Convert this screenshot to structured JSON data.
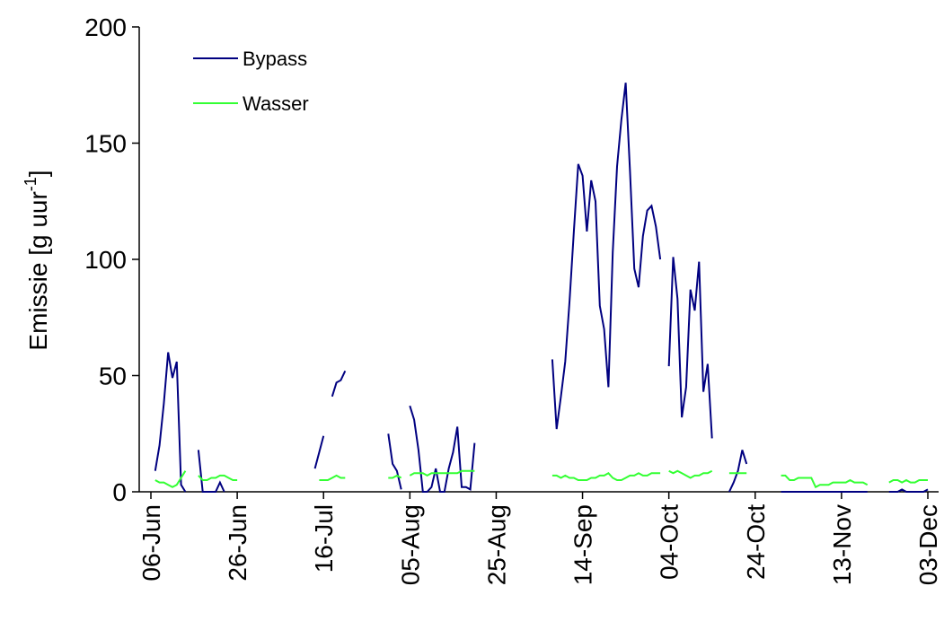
{
  "chart_data": {
    "type": "line",
    "ylabel": [
      "Emissie [g uur",
      "-1",
      "]"
    ],
    "categories": [
      "06-Jun",
      null,
      null,
      null,
      null,
      null,
      null,
      null,
      null,
      null,
      null,
      null,
      null,
      null,
      null,
      null,
      null,
      null,
      null,
      null,
      "26-Jun",
      null,
      null,
      null,
      null,
      null,
      null,
      null,
      null,
      null,
      null,
      null,
      null,
      null,
      null,
      null,
      null,
      null,
      null,
      null,
      "16-Jul",
      null,
      null,
      null,
      null,
      null,
      null,
      null,
      null,
      null,
      null,
      null,
      null,
      null,
      null,
      null,
      null,
      null,
      null,
      null,
      "05-Aug",
      null,
      null,
      null,
      null,
      null,
      null,
      null,
      null,
      null,
      null,
      null,
      null,
      null,
      null,
      null,
      null,
      null,
      null,
      null,
      "25-Aug",
      null,
      null,
      null,
      null,
      null,
      null,
      null,
      null,
      null,
      null,
      null,
      null,
      null,
      null,
      null,
      null,
      null,
      null,
      null,
      "14-Sep",
      null,
      null,
      null,
      null,
      null,
      null,
      null,
      null,
      null,
      null,
      null,
      null,
      null,
      null,
      null,
      null,
      null,
      null,
      null,
      "04-Oct",
      null,
      null,
      null,
      null,
      null,
      null,
      null,
      null,
      null,
      null,
      null,
      null,
      null,
      null,
      null,
      null,
      null,
      null,
      null,
      "24-Oct",
      null,
      null,
      null,
      null,
      null,
      null,
      null,
      null,
      null,
      null,
      null,
      null,
      null,
      null,
      null,
      null,
      null,
      null,
      null,
      "13-Nov",
      null,
      null,
      null,
      null,
      null,
      null,
      null,
      null,
      null,
      null,
      null,
      null,
      null,
      null,
      null,
      null,
      null,
      null,
      null,
      "03-Dec"
    ],
    "series": [
      {
        "name": "Bypass",
        "color": "#000080",
        "values": [
          null,
          9,
          20,
          38,
          60,
          49,
          56,
          3,
          0,
          null,
          null,
          18,
          0,
          0,
          0,
          0,
          4,
          0,
          null,
          null,
          null,
          null,
          null,
          null,
          null,
          null,
          null,
          null,
          null,
          null,
          null,
          null,
          null,
          null,
          null,
          null,
          null,
          null,
          10,
          17,
          24,
          null,
          41,
          47,
          48,
          52,
          null,
          null,
          null,
          null,
          null,
          null,
          null,
          null,
          null,
          25,
          12,
          9,
          1,
          null,
          37,
          31,
          18,
          0,
          0,
          2,
          10,
          0,
          0,
          10,
          17,
          28,
          2,
          2,
          1,
          21,
          null,
          null,
          null,
          null,
          null,
          null,
          null,
          null,
          null,
          null,
          null,
          null,
          null,
          null,
          null,
          null,
          null,
          57,
          27,
          41,
          56,
          82,
          112,
          141,
          136,
          112,
          134,
          125,
          80,
          70,
          45,
          103,
          140,
          160,
          176,
          138,
          96,
          88,
          110,
          121,
          123,
          114,
          100,
          null,
          54,
          101,
          83,
          32,
          45,
          87,
          78,
          99,
          43,
          55,
          23,
          null,
          null,
          null,
          0,
          4,
          9,
          18,
          12,
          null,
          null,
          null,
          null,
          null,
          null,
          null,
          0,
          0,
          0,
          0,
          0,
          0,
          0,
          0,
          0,
          0,
          0,
          0,
          0,
          0,
          0,
          0,
          0,
          0,
          0,
          0,
          0,
          null,
          null,
          null,
          null,
          0,
          0,
          0,
          1,
          0,
          0,
          0,
          0,
          0,
          1
        ]
      },
      {
        "name": "Wasser",
        "color": "#33ff33",
        "values": [
          null,
          5,
          4,
          4,
          3,
          2,
          3,
          6,
          9,
          null,
          null,
          7,
          5,
          5,
          6,
          6,
          7,
          7,
          6,
          5,
          5,
          null,
          null,
          null,
          null,
          null,
          null,
          null,
          null,
          null,
          null,
          null,
          null,
          null,
          null,
          null,
          null,
          null,
          null,
          5,
          5,
          5,
          6,
          7,
          6,
          6,
          null,
          null,
          null,
          null,
          null,
          null,
          null,
          null,
          null,
          6,
          6,
          7,
          6,
          null,
          7,
          8,
          8,
          8,
          7,
          8,
          8,
          8,
          8,
          8,
          8,
          8,
          9,
          9,
          9,
          9,
          null,
          null,
          null,
          null,
          null,
          null,
          null,
          null,
          null,
          null,
          null,
          null,
          null,
          null,
          null,
          null,
          null,
          7,
          7,
          6,
          7,
          6,
          6,
          5,
          5,
          5,
          6,
          6,
          7,
          7,
          8,
          6,
          5,
          5,
          6,
          7,
          7,
          8,
          7,
          7,
          8,
          8,
          8,
          null,
          9,
          8,
          9,
          8,
          7,
          6,
          7,
          7,
          8,
          8,
          9,
          null,
          null,
          null,
          8,
          8,
          8,
          8,
          8,
          null,
          null,
          null,
          null,
          null,
          null,
          null,
          7,
          7,
          5,
          5,
          6,
          6,
          6,
          6,
          2,
          3,
          3,
          3,
          4,
          4,
          4,
          4,
          5,
          4,
          4,
          4,
          3,
          null,
          null,
          null,
          null,
          4,
          5,
          5,
          4,
          5,
          4,
          4,
          5,
          5,
          5
        ]
      }
    ],
    "ylim": [
      0,
      200
    ],
    "yticks": [
      0,
      50,
      100,
      150,
      200
    ],
    "legend": "upper-left",
    "grid": false
  }
}
